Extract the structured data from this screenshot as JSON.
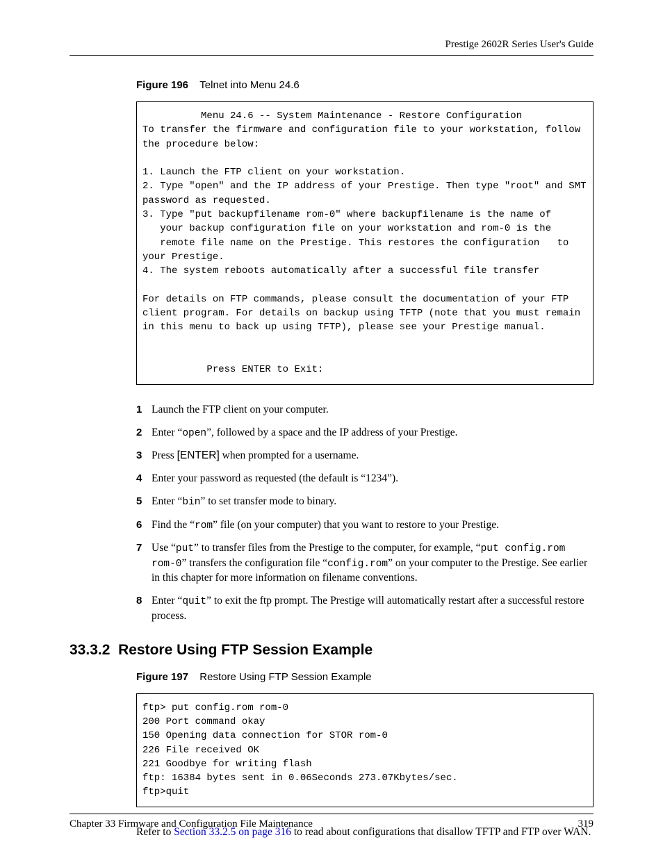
{
  "header": {
    "running": "Prestige 2602R Series User's Guide"
  },
  "figure196": {
    "label": "Figure 196",
    "title": "Telnet into Menu 24.6",
    "code": "          Menu 24.6 -- System Maintenance - Restore Configuration\nTo transfer the firmware and configuration file to your workstation, follow the procedure below:\n\n1. Launch the FTP client on your workstation.\n2. Type \"open\" and the IP address of your Prestige. Then type \"root\" and SMT password as requested.\n3. Type \"put backupfilename rom-0\" where backupfilename is the name of\n   your backup configuration file on your workstation and rom-0 is the\n   remote file name on the Prestige. This restores the configuration   to your Prestige.\n4. The system reboots automatically after a successful file transfer\n\nFor details on FTP commands, please consult the documentation of your FTP client program. For details on backup using TFTP (note that you must remain in this menu to back up using TFTP), please see your Prestige manual.\n\n\n           Press ENTER to Exit:"
  },
  "steps": {
    "n1": "1",
    "s1": "Launch the FTP client on your computer.",
    "n2": "2",
    "s2_a": "Enter “",
    "s2_b": "open",
    "s2_c": "”, followed by a space and the IP address of your Prestige.",
    "n3": "3",
    "s3_a": "Press ",
    "s3_b": "[ENTER]",
    "s3_c": " when prompted for a username.",
    "n4": "4",
    "s4": "Enter your password as requested (the default is “1234”).",
    "n5": "5",
    "s5_a": "Enter “",
    "s5_b": "bin",
    "s5_c": "” to set transfer mode to binary.",
    "n6": "6",
    "s6_a": "Find the “",
    "s6_b": "rom",
    "s6_c": "” file (on your computer) that you want to restore to your Prestige.",
    "n7": "7",
    "s7_a": "Use “",
    "s7_b": "put",
    "s7_c": "” to transfer files from the Prestige to the computer, for example, “",
    "s7_d": "put config.rom rom-0",
    "s7_e": "” transfers the configuration file “",
    "s7_f": "config.rom",
    "s7_g": "” on your computer to the Prestige. See earlier in this chapter for more information on filename conventions.",
    "n8": "8",
    "s8_a": "Enter “",
    "s8_b": "quit",
    "s8_c": "” to exit the ftp prompt. The Prestige will automatically restart after a successful restore process."
  },
  "section": {
    "number": "33.3.2",
    "title": "Restore Using FTP Session Example"
  },
  "figure197": {
    "label": "Figure 197",
    "title": "Restore Using FTP Session Example",
    "code": "ftp> put config.rom rom-0\n200 Port command okay\n150 Opening data connection for STOR rom-0\n226 File received OK\n221 Goodbye for writing flash\nftp: 16384 bytes sent in 0.06Seconds 273.07Kbytes/sec.\nftp>quit"
  },
  "para": {
    "a": "Refer to ",
    "link": "Section 33.2.5 on page 316",
    "b": " to read about configurations that disallow TFTP and FTP over WAN."
  },
  "footer": {
    "chapter": "Chapter 33 Firmware and Configuration File Maintenance",
    "page": "319"
  }
}
